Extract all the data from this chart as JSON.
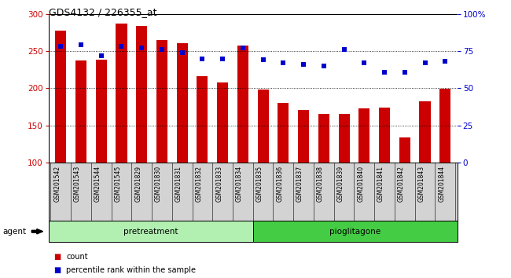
{
  "title": "GDS4132 / 226355_at",
  "categories": [
    "GSM201542",
    "GSM201543",
    "GSM201544",
    "GSM201545",
    "GSM201829",
    "GSM201830",
    "GSM201831",
    "GSM201832",
    "GSM201833",
    "GSM201834",
    "GSM201835",
    "GSM201836",
    "GSM201837",
    "GSM201838",
    "GSM201839",
    "GSM201840",
    "GSM201841",
    "GSM201842",
    "GSM201843",
    "GSM201844"
  ],
  "bar_values": [
    278,
    237,
    238,
    287,
    284,
    265,
    261,
    216,
    208,
    257,
    198,
    180,
    171,
    166,
    166,
    173,
    174,
    134,
    182,
    199
  ],
  "percentile_values": [
    78,
    79,
    72,
    78,
    77,
    76,
    74,
    70,
    70,
    77,
    69,
    67,
    66,
    65,
    76,
    67,
    61,
    61,
    67,
    68
  ],
  "bar_color": "#cc0000",
  "percentile_color": "#0000cc",
  "ylim_left": [
    100,
    300
  ],
  "ylim_right": [
    0,
    100
  ],
  "yticks_left": [
    100,
    150,
    200,
    250,
    300
  ],
  "yticks_right": [
    0,
    25,
    50,
    75,
    100
  ],
  "ytick_labels_right": [
    "0",
    "25",
    "50",
    "75",
    "100%"
  ],
  "group1_label": "pretreatment",
  "group2_label": "pioglitagone",
  "group1_count": 10,
  "group2_count": 10,
  "agent_label": "agent",
  "legend_count": "count",
  "legend_pct": "percentile rank within the sample",
  "bg_pretreat": "#b2f0b2",
  "bg_pioglit": "#44cc44",
  "bar_width": 0.55,
  "dotted_lines": [
    150,
    200,
    250
  ]
}
